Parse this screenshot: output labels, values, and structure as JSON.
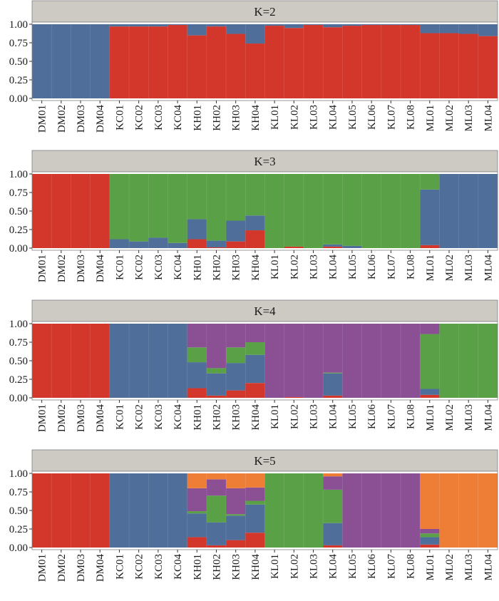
{
  "colors": {
    "red": "#d3372c",
    "blue": "#4f6e99",
    "green": "#5aa046",
    "purple": "#8b4f94",
    "orange": "#ee7e36",
    "strip_bg": "#cdc9c3"
  },
  "chart_data": [
    {
      "type": "bar",
      "stacked": true,
      "title": "K=2",
      "categories": [
        "DM01",
        "DM02",
        "DM03",
        "DM04",
        "KC01",
        "KC02",
        "KC03",
        "KC04",
        "KH01",
        "KH02",
        "KH03",
        "KH04",
        "KL01",
        "KL02",
        "KL03",
        "KL04",
        "KL05",
        "KL06",
        "KL07",
        "KL08",
        "ML01",
        "ML02",
        "ML03",
        "ML04"
      ],
      "yticks": [
        "0.00",
        "0.25",
        "0.50",
        "0.75",
        "1.00"
      ],
      "ylim": [
        0,
        1
      ],
      "series": [
        {
          "color": "red",
          "values": [
            0,
            0,
            0,
            0,
            0.97,
            0.97,
            0.97,
            0.99,
            0.85,
            0.97,
            0.87,
            0.74,
            0.98,
            0.95,
            0.99,
            0.96,
            0.98,
            0.99,
            0.99,
            0.99,
            0.88,
            0.88,
            0.87,
            0.84
          ]
        },
        {
          "color": "blue",
          "values": [
            1,
            1,
            1,
            1,
            0.03,
            0.03,
            0.03,
            0.01,
            0.15,
            0.03,
            0.13,
            0.26,
            0.02,
            0.05,
            0.01,
            0.04,
            0.02,
            0.01,
            0.01,
            0.01,
            0.12,
            0.12,
            0.13,
            0.16
          ]
        }
      ]
    },
    {
      "type": "bar",
      "stacked": true,
      "title": "K=3",
      "categories": [
        "DM01",
        "DM02",
        "DM03",
        "DM04",
        "KC01",
        "KC02",
        "KC03",
        "KC04",
        "KH01",
        "KH02",
        "KH03",
        "KH04",
        "KL01",
        "KL02",
        "KL03",
        "KL04",
        "KL05",
        "KL06",
        "KL07",
        "KL08",
        "ML01",
        "ML02",
        "ML03",
        "ML04"
      ],
      "yticks": [
        "0.00",
        "0.25",
        "0.50",
        "0.75",
        "1.00"
      ],
      "ylim": [
        0,
        1
      ],
      "series": [
        {
          "color": "red",
          "values": [
            1,
            1,
            1,
            1,
            0,
            0,
            0,
            0,
            0.12,
            0.01,
            0.09,
            0.24,
            0,
            0.02,
            0,
            0.02,
            0,
            0,
            0,
            0,
            0.04,
            0,
            0,
            0
          ]
        },
        {
          "color": "blue",
          "values": [
            0,
            0,
            0,
            0,
            0.12,
            0.09,
            0.14,
            0.07,
            0.27,
            0.09,
            0.28,
            0.2,
            0,
            0,
            0,
            0.03,
            0.03,
            0,
            0,
            0,
            0.75,
            1,
            1,
            1
          ]
        },
        {
          "color": "green",
          "values": [
            0,
            0,
            0,
            0,
            0.88,
            0.91,
            0.86,
            0.93,
            0.61,
            0.9,
            0.63,
            0.56,
            1,
            0.98,
            1,
            0.95,
            0.97,
            1,
            1,
            1,
            0.21,
            0,
            0,
            0
          ]
        }
      ]
    },
    {
      "type": "bar",
      "stacked": true,
      "title": "K=4",
      "categories": [
        "DM01",
        "DM02",
        "DM03",
        "DM04",
        "KC01",
        "KC02",
        "KC03",
        "KC04",
        "KH01",
        "KH02",
        "KH03",
        "KH04",
        "KL01",
        "KL02",
        "KL03",
        "KL04",
        "KL05",
        "KL06",
        "KL07",
        "KL08",
        "ML01",
        "ML02",
        "ML03",
        "ML04"
      ],
      "yticks": [
        "0.00",
        "0.25",
        "0.50",
        "0.75",
        "1.00"
      ],
      "ylim": [
        0,
        1
      ],
      "series": [
        {
          "color": "red",
          "values": [
            1,
            1,
            1,
            1,
            0,
            0,
            0,
            0,
            0.13,
            0.03,
            0.1,
            0.2,
            0,
            0.01,
            0,
            0.03,
            0,
            0,
            0,
            0,
            0.04,
            0,
            0,
            0
          ]
        },
        {
          "color": "blue",
          "values": [
            0,
            0,
            0,
            0,
            1,
            1,
            1,
            1,
            0.35,
            0.3,
            0.37,
            0.38,
            0,
            0,
            0,
            0.3,
            0,
            0,
            0,
            0,
            0.08,
            0,
            0,
            0
          ]
        },
        {
          "color": "green",
          "values": [
            0,
            0,
            0,
            0,
            0,
            0,
            0,
            0,
            0.2,
            0.07,
            0.21,
            0.17,
            0,
            0,
            0,
            0.01,
            0,
            0,
            0,
            0,
            0.74,
            1,
            1,
            1
          ]
        },
        {
          "color": "purple",
          "values": [
            0,
            0,
            0,
            0,
            0,
            0,
            0,
            0,
            0.32,
            0.6,
            0.32,
            0.25,
            1,
            0.99,
            1,
            0.66,
            1,
            1,
            1,
            1,
            0.14,
            0,
            0,
            0
          ]
        }
      ]
    },
    {
      "type": "bar",
      "stacked": true,
      "title": "K=5",
      "categories": [
        "DM01",
        "DM02",
        "DM03",
        "DM04",
        "KC01",
        "KC02",
        "KC03",
        "KC04",
        "KH01",
        "KH02",
        "KH03",
        "KH04",
        "KL01",
        "KL02",
        "KL03",
        "KL04",
        "KL05",
        "KL06",
        "KL07",
        "KL08",
        "ML01",
        "ML02",
        "ML03",
        "ML04"
      ],
      "yticks": [
        "0.00",
        "0.25",
        "0.50",
        "0.75",
        "1.00"
      ],
      "ylim": [
        0,
        1
      ],
      "series": [
        {
          "color": "red",
          "values": [
            1,
            1,
            1,
            1,
            0,
            0,
            0,
            0,
            0.14,
            0.03,
            0.1,
            0.2,
            0,
            0,
            0,
            0.03,
            0,
            0,
            0,
            0,
            0.04,
            0,
            0,
            0
          ]
        },
        {
          "color": "blue",
          "values": [
            0,
            0,
            0,
            0,
            1,
            1,
            1,
            1,
            0.32,
            0.31,
            0.33,
            0.38,
            0,
            0,
            0,
            0.3,
            0,
            0,
            0,
            0,
            0.1,
            0,
            0,
            0
          ]
        },
        {
          "color": "green",
          "values": [
            0,
            0,
            0,
            0,
            0,
            0,
            0,
            0,
            0.03,
            0.36,
            0.02,
            0.05,
            1,
            1,
            1,
            0.45,
            0,
            0,
            0,
            0,
            0.05,
            0,
            0,
            0
          ]
        },
        {
          "color": "purple",
          "values": [
            0,
            0,
            0,
            0,
            0,
            0,
            0,
            0,
            0.31,
            0.22,
            0.35,
            0.18,
            0,
            0,
            0,
            0.18,
            1,
            1,
            1,
            1,
            0.06,
            0,
            0,
            0
          ]
        },
        {
          "color": "orange",
          "values": [
            0,
            0,
            0,
            0,
            0,
            0,
            0,
            0,
            0.2,
            0.08,
            0.2,
            0.19,
            0,
            0,
            0,
            0.04,
            0,
            0,
            0,
            0,
            0.75,
            1,
            1,
            1
          ]
        }
      ]
    }
  ]
}
